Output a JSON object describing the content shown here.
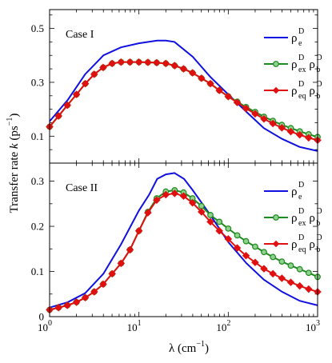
{
  "chart_data": [
    {
      "type": "line",
      "panel_label": "Case I",
      "x_scale": "log",
      "xlim": [
        1,
        1000
      ],
      "ylim": [
        0,
        0.57
      ],
      "yticks": [
        0.1,
        0.3,
        0.5
      ],
      "legend_position": "top-right",
      "series": [
        {
          "name": "ρeD",
          "name_main": "ρ",
          "name_parts": [
            {
              "sup": "D",
              "sub": "e"
            }
          ],
          "color": "#1010e0",
          "marker": "none",
          "x": [
            1,
            1.6,
            2.5,
            4,
            6.3,
            10,
            16,
            20,
            25,
            40,
            63,
            100,
            160,
            250,
            400,
            630,
            1000
          ],
          "y": [
            0.155,
            0.235,
            0.33,
            0.4,
            0.43,
            0.445,
            0.455,
            0.455,
            0.45,
            0.395,
            0.32,
            0.255,
            0.19,
            0.13,
            0.09,
            0.06,
            0.045
          ]
        },
        {
          "name": "ρexDρbD",
          "name_main": "ρ",
          "name_parts": [
            {
              "sup": "D",
              "sub": "ex"
            },
            {
              "sup": "D",
              "sub": "b"
            }
          ],
          "color": "#1c8a1c",
          "marker": "circle",
          "x": [
            1,
            1.26,
            1.58,
            2,
            2.51,
            3.16,
            3.98,
            5.01,
            6.31,
            7.94,
            10,
            12.6,
            15.8,
            20,
            25.1,
            31.6,
            39.8,
            50.1,
            63.1,
            79.4,
            100,
            126,
            158,
            200,
            251,
            316,
            398,
            501,
            631,
            794,
            1000
          ],
          "y": [
            0.135,
            0.175,
            0.215,
            0.255,
            0.295,
            0.33,
            0.355,
            0.37,
            0.375,
            0.375,
            0.375,
            0.374,
            0.373,
            0.37,
            0.362,
            0.35,
            0.335,
            0.315,
            0.295,
            0.27,
            0.248,
            0.228,
            0.208,
            0.19,
            0.172,
            0.157,
            0.142,
            0.13,
            0.118,
            0.107,
            0.097
          ]
        },
        {
          "name": "ρeqDρbD",
          "name_main": "ρ",
          "name_parts": [
            {
              "sup": "D",
              "sub": "eq"
            },
            {
              "sup": "D",
              "sub": "b"
            }
          ],
          "color": "#e01010",
          "marker": "diamond",
          "x": [
            1,
            1.26,
            1.58,
            2,
            2.51,
            3.16,
            3.98,
            5.01,
            6.31,
            7.94,
            10,
            12.6,
            15.8,
            20,
            25.1,
            31.6,
            39.8,
            50.1,
            63.1,
            79.4,
            100,
            126,
            158,
            200,
            251,
            316,
            398,
            501,
            631,
            794,
            1000
          ],
          "y": [
            0.135,
            0.175,
            0.215,
            0.255,
            0.295,
            0.33,
            0.355,
            0.37,
            0.375,
            0.375,
            0.375,
            0.374,
            0.373,
            0.37,
            0.362,
            0.35,
            0.335,
            0.315,
            0.295,
            0.27,
            0.247,
            0.225,
            0.203,
            0.183,
            0.164,
            0.147,
            0.131,
            0.117,
            0.105,
            0.094,
            0.085
          ]
        }
      ]
    },
    {
      "type": "line",
      "panel_label": "Case II",
      "x_scale": "log",
      "xlim": [
        1,
        1000
      ],
      "ylim": [
        0,
        0.34
      ],
      "yticks": [
        0,
        0.1,
        0.2,
        0.3
      ],
      "legend_position": "top-right",
      "series": [
        {
          "name": "ρeD",
          "name_main": "ρ",
          "name_parts": [
            {
              "sup": "D",
              "sub": "e"
            }
          ],
          "color": "#1010e0",
          "marker": "none",
          "x": [
            1,
            1.6,
            2.5,
            4,
            6.3,
            10,
            13,
            16,
            20,
            25,
            32,
            40,
            63,
            100,
            160,
            250,
            400,
            630,
            1000
          ],
          "y": [
            0.02,
            0.032,
            0.052,
            0.095,
            0.16,
            0.235,
            0.27,
            0.305,
            0.315,
            0.318,
            0.305,
            0.28,
            0.225,
            0.165,
            0.118,
            0.082,
            0.055,
            0.035,
            0.025
          ]
        },
        {
          "name": "ρexDρbD",
          "name_main": "ρ",
          "name_parts": [
            {
              "sup": "D",
              "sub": "ex"
            },
            {
              "sup": "D",
              "sub": "b"
            }
          ],
          "color": "#1c8a1c",
          "marker": "circle",
          "x": [
            1,
            1.26,
            1.58,
            2,
            2.51,
            3.16,
            3.98,
            5.01,
            6.31,
            7.94,
            10,
            12.6,
            15.8,
            20,
            25.1,
            31.6,
            39.8,
            50.1,
            63.1,
            79.4,
            100,
            126,
            158,
            200,
            251,
            316,
            398,
            501,
            631,
            794,
            1000
          ],
          "y": [
            0.015,
            0.02,
            0.025,
            0.032,
            0.042,
            0.055,
            0.072,
            0.095,
            0.118,
            0.148,
            0.19,
            0.232,
            0.262,
            0.277,
            0.28,
            0.275,
            0.262,
            0.245,
            0.225,
            0.21,
            0.195,
            0.18,
            0.167,
            0.155,
            0.143,
            0.132,
            0.122,
            0.113,
            0.105,
            0.097,
            0.088
          ]
        },
        {
          "name": "ρeqDρbD",
          "name_main": "ρ",
          "name_parts": [
            {
              "sup": "D",
              "sub": "eq"
            },
            {
              "sup": "D",
              "sub": "b"
            }
          ],
          "color": "#e01010",
          "marker": "diamond",
          "x": [
            1,
            1.26,
            1.58,
            2,
            2.51,
            3.16,
            3.98,
            5.01,
            6.31,
            7.94,
            10,
            12.6,
            15.8,
            20,
            25.1,
            31.6,
            39.8,
            50.1,
            63.1,
            79.4,
            100,
            126,
            158,
            200,
            251,
            316,
            398,
            501,
            631,
            794,
            1000
          ],
          "y": [
            0.015,
            0.02,
            0.025,
            0.032,
            0.042,
            0.055,
            0.072,
            0.095,
            0.118,
            0.148,
            0.19,
            0.23,
            0.258,
            0.27,
            0.273,
            0.267,
            0.252,
            0.232,
            0.21,
            0.19,
            0.172,
            0.152,
            0.135,
            0.12,
            0.106,
            0.095,
            0.085,
            0.076,
            0.068,
            0.061,
            0.055
          ]
        }
      ]
    }
  ],
  "axes": {
    "ylabel": "Transfer rate k (ps⁻¹)",
    "ylabel_prefix": "Transfer rate ",
    "ylabel_k": "k",
    "ylabel_unit": " (ps",
    "ylabel_exp": "−1",
    "ylabel_close": ")",
    "xlabel": "λ (cm⁻¹)",
    "xlabel_main": "λ (cm",
    "xlabel_exp": "−1",
    "xlabel_close": ")",
    "xticks": [
      {
        "base": "10",
        "exp": "0"
      },
      {
        "base": "10",
        "exp": "1"
      },
      {
        "base": "10",
        "exp": "2"
      },
      {
        "base": "10",
        "exp": "3"
      }
    ]
  }
}
